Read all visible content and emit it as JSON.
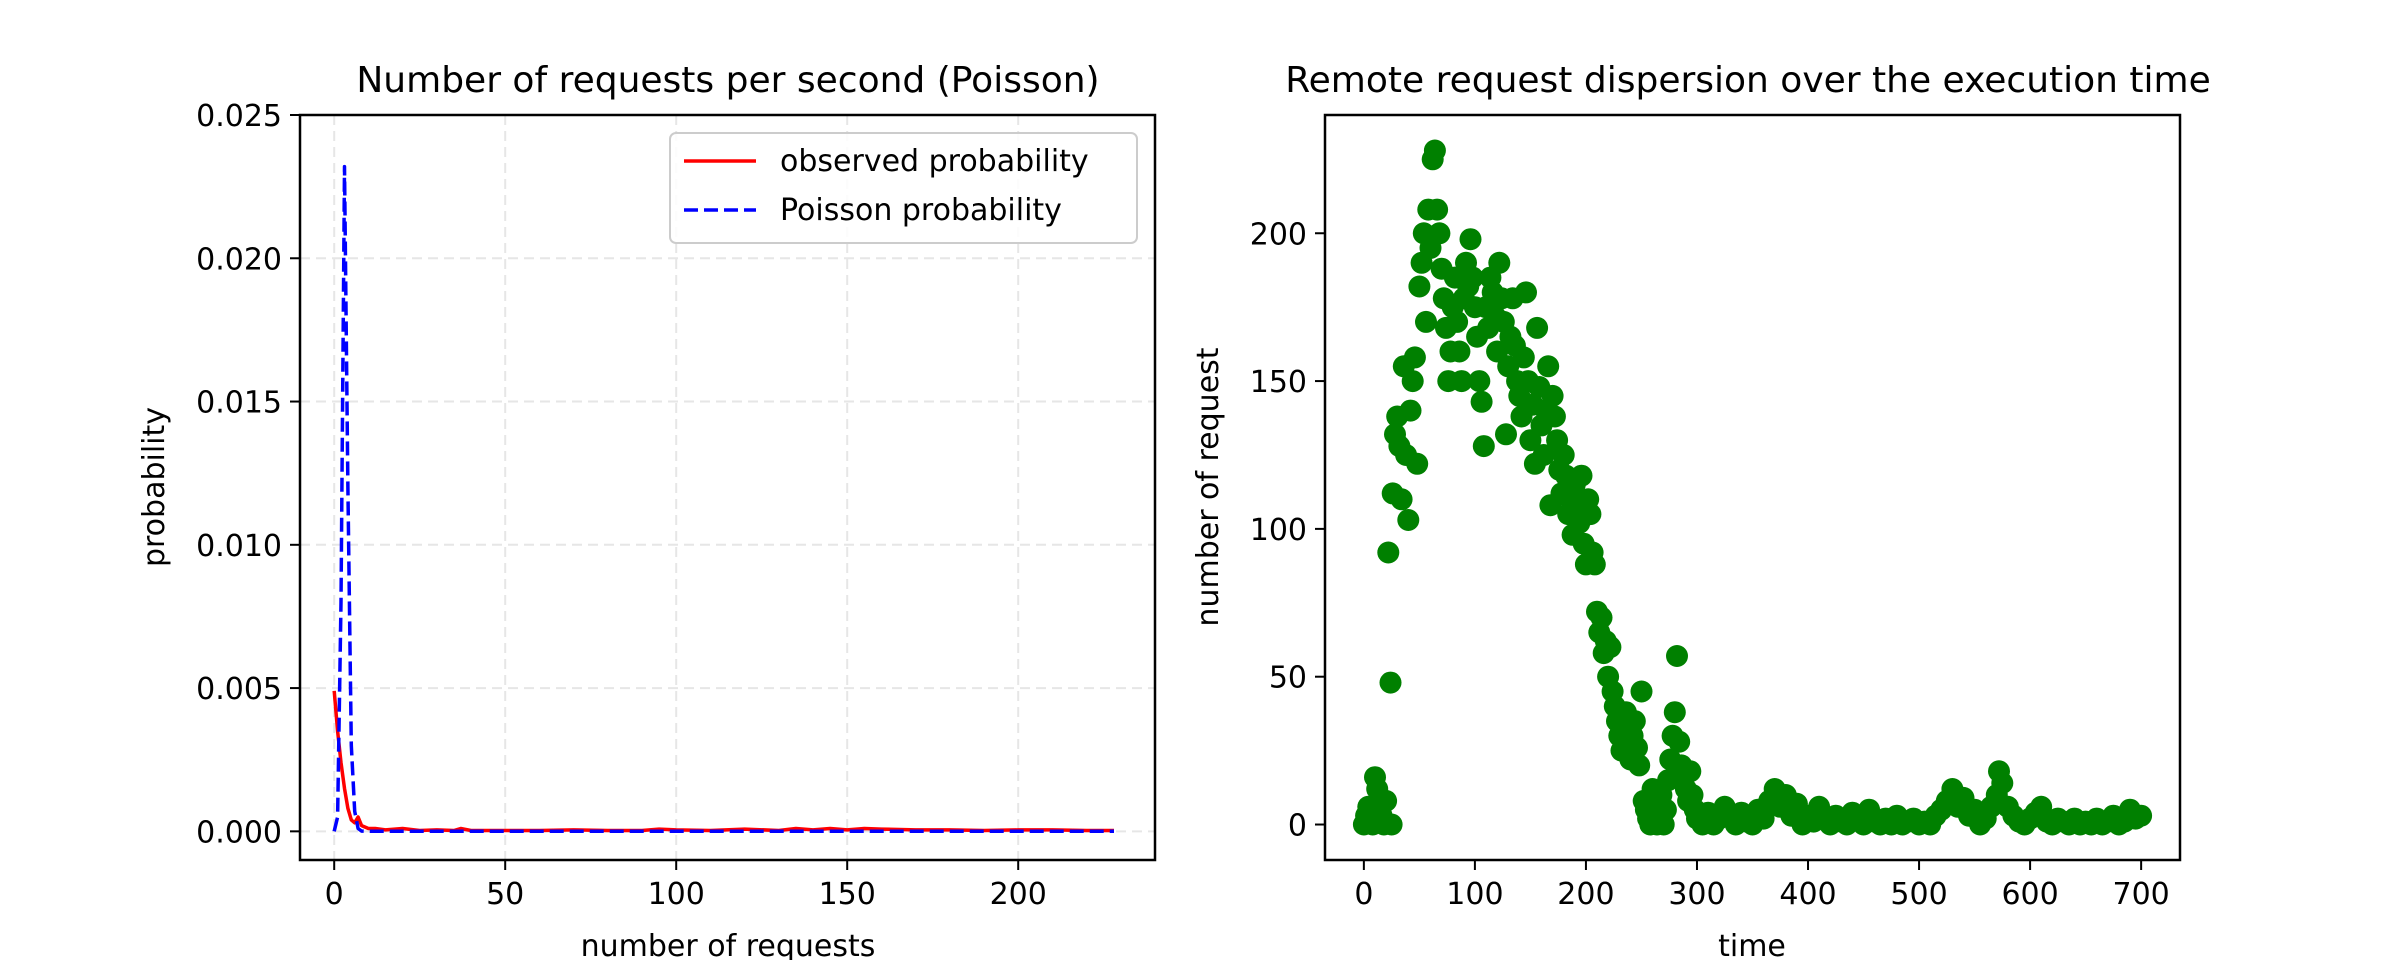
{
  "chart_data": [
    {
      "type": "line",
      "title": "Number of requests per second (Poisson)",
      "xlabel": "number of requests",
      "ylabel": "probability",
      "xlim": [
        -10,
        240
      ],
      "ylim": [
        -0.001,
        0.025
      ],
      "xticks": [
        0,
        50,
        100,
        150,
        200
      ],
      "xtick_labels": [
        "0",
        "50",
        "100",
        "150",
        "200"
      ],
      "yticks": [
        0.0,
        0.005,
        0.01,
        0.015,
        0.02,
        0.025
      ],
      "ytick_labels": [
        "0.000",
        "0.005",
        "0.010",
        "0.015",
        "0.020",
        "0.025"
      ],
      "grid": true,
      "legend_position": "top-right",
      "series": [
        {
          "name": "observed probability",
          "color": "#ff0000",
          "style": "solid",
          "x": [
            0,
            1,
            2,
            3,
            4,
            5,
            6,
            7,
            8,
            10,
            12,
            15,
            20,
            25,
            30,
            35,
            37,
            40,
            50,
            60,
            70,
            80,
            90,
            95,
            100,
            110,
            120,
            130,
            135,
            140,
            145,
            150,
            155,
            160,
            170,
            180,
            190,
            200,
            210,
            220,
            228
          ],
          "y": [
            0.0049,
            0.0035,
            0.0024,
            0.0015,
            0.0008,
            0.0004,
            0.0003,
            0.0005,
            0.0002,
            0.0001,
            0.0001,
            5e-05,
            0.0001,
            3e-05,
            5e-05,
            3e-05,
            0.0001,
            3e-05,
            3e-05,
            3e-05,
            5e-05,
            3e-05,
            3e-05,
            8e-05,
            5e-05,
            3e-05,
            8e-05,
            3e-05,
            0.0001,
            5e-05,
            0.0001,
            5e-05,
            0.0001,
            8e-05,
            5e-05,
            5e-05,
            3e-05,
            5e-05,
            5e-05,
            3e-05,
            3e-05
          ]
        },
        {
          "name": "Poisson probability",
          "color": "#0000ff",
          "style": "dashed",
          "x": [
            0,
            1,
            2,
            3,
            4,
            5,
            6,
            7,
            8,
            10,
            15,
            20,
            50,
            100,
            150,
            200,
            228
          ],
          "y": [
            0.0,
            0.0005,
            0.008,
            0.0232,
            0.012,
            0.003,
            0.0007,
            0.0001,
            1e-05,
            0.0,
            0.0,
            0.0,
            0.0,
            0.0,
            0.0,
            0.0,
            0.0
          ]
        }
      ]
    },
    {
      "type": "scatter",
      "title": "Remote request dispersion over the execution time",
      "xlabel": "time",
      "ylabel": "number of request",
      "xlim": [
        -35,
        735
      ],
      "ylim": [
        -12,
        240
      ],
      "xticks": [
        0,
        100,
        200,
        300,
        400,
        500,
        600,
        700
      ],
      "xtick_labels": [
        "0",
        "100",
        "200",
        "300",
        "400",
        "500",
        "600",
        "700"
      ],
      "yticks": [
        0,
        50,
        100,
        150,
        200
      ],
      "ytick_labels": [
        "0",
        "50",
        "100",
        "150",
        "200"
      ],
      "grid": false,
      "color": "#008000",
      "points": [
        [
          0,
          0
        ],
        [
          2,
          3
        ],
        [
          4,
          6
        ],
        [
          6,
          1
        ],
        [
          8,
          0
        ],
        [
          10,
          16
        ],
        [
          12,
          12
        ],
        [
          14,
          7
        ],
        [
          16,
          3
        ],
        [
          18,
          0
        ],
        [
          20,
          8
        ],
        [
          22,
          92
        ],
        [
          24,
          48
        ],
        [
          25,
          0
        ],
        [
          26,
          112
        ],
        [
          28,
          132
        ],
        [
          30,
          138
        ],
        [
          32,
          128
        ],
        [
          34,
          110
        ],
        [
          36,
          155
        ],
        [
          38,
          125
        ],
        [
          40,
          103
        ],
        [
          42,
          140
        ],
        [
          44,
          150
        ],
        [
          46,
          158
        ],
        [
          48,
          122
        ],
        [
          50,
          182
        ],
        [
          52,
          190
        ],
        [
          54,
          200
        ],
        [
          56,
          170
        ],
        [
          58,
          208
        ],
        [
          60,
          195
        ],
        [
          62,
          225
        ],
        [
          64,
          228
        ],
        [
          66,
          208
        ],
        [
          68,
          200
        ],
        [
          70,
          188
        ],
        [
          72,
          178
        ],
        [
          74,
          168
        ],
        [
          76,
          150
        ],
        [
          78,
          160
        ],
        [
          80,
          175
        ],
        [
          82,
          185
        ],
        [
          84,
          170
        ],
        [
          86,
          160
        ],
        [
          88,
          150
        ],
        [
          90,
          178
        ],
        [
          92,
          190
        ],
        [
          94,
          182
        ],
        [
          96,
          198
        ],
        [
          98,
          185
        ],
        [
          100,
          175
        ],
        [
          102,
          165
        ],
        [
          104,
          150
        ],
        [
          106,
          143
        ],
        [
          108,
          128
        ],
        [
          110,
          175
        ],
        [
          112,
          168
        ],
        [
          114,
          185
        ],
        [
          116,
          180
        ],
        [
          118,
          172
        ],
        [
          120,
          160
        ],
        [
          122,
          190
        ],
        [
          124,
          178
        ],
        [
          126,
          170
        ],
        [
          128,
          132
        ],
        [
          130,
          155
        ],
        [
          132,
          165
        ],
        [
          134,
          178
        ],
        [
          136,
          162
        ],
        [
          138,
          150
        ],
        [
          140,
          145
        ],
        [
          142,
          138
        ],
        [
          144,
          158
        ],
        [
          146,
          180
        ],
        [
          148,
          150
        ],
        [
          150,
          130
        ],
        [
          152,
          142
        ],
        [
          154,
          122
        ],
        [
          156,
          168
        ],
        [
          158,
          148
        ],
        [
          160,
          135
        ],
        [
          162,
          125
        ],
        [
          164,
          140
        ],
        [
          166,
          155
        ],
        [
          168,
          108
        ],
        [
          170,
          145
        ],
        [
          172,
          138
        ],
        [
          174,
          130
        ],
        [
          176,
          120
        ],
        [
          178,
          112
        ],
        [
          180,
          125
        ],
        [
          182,
          118
        ],
        [
          184,
          105
        ],
        [
          186,
          110
        ],
        [
          188,
          98
        ],
        [
          190,
          115
        ],
        [
          192,
          108
        ],
        [
          194,
          102
        ],
        [
          196,
          118
        ],
        [
          198,
          95
        ],
        [
          200,
          88
        ],
        [
          202,
          110
        ],
        [
          204,
          105
        ],
        [
          206,
          92
        ],
        [
          208,
          88
        ],
        [
          210,
          72
        ],
        [
          212,
          65
        ],
        [
          214,
          70
        ],
        [
          216,
          58
        ],
        [
          218,
          62
        ],
        [
          220,
          50
        ],
        [
          222,
          60
        ],
        [
          224,
          45
        ],
        [
          226,
          40
        ],
        [
          228,
          35
        ],
        [
          230,
          30
        ],
        [
          232,
          25
        ],
        [
          234,
          32
        ],
        [
          236,
          38
        ],
        [
          238,
          28
        ],
        [
          240,
          22
        ],
        [
          242,
          30
        ],
        [
          244,
          35
        ],
        [
          246,
          26
        ],
        [
          248,
          20
        ],
        [
          250,
          45
        ],
        [
          252,
          8
        ],
        [
          254,
          5
        ],
        [
          256,
          2
        ],
        [
          258,
          0
        ],
        [
          260,
          12
        ],
        [
          262,
          6
        ],
        [
          264,
          0
        ],
        [
          266,
          3
        ],
        [
          268,
          10
        ],
        [
          270,
          0
        ],
        [
          272,
          5
        ],
        [
          274,
          15
        ],
        [
          276,
          22
        ],
        [
          278,
          30
        ],
        [
          280,
          38
        ],
        [
          282,
          57
        ],
        [
          284,
          28
        ],
        [
          286,
          20
        ],
        [
          288,
          16
        ],
        [
          290,
          12
        ],
        [
          292,
          8
        ],
        [
          294,
          18
        ],
        [
          296,
          10
        ],
        [
          298,
          5
        ],
        [
          300,
          2
        ],
        [
          305,
          0
        ],
        [
          310,
          4
        ],
        [
          315,
          0
        ],
        [
          320,
          2
        ],
        [
          325,
          6
        ],
        [
          330,
          3
        ],
        [
          335,
          0
        ],
        [
          340,
          4
        ],
        [
          345,
          1
        ],
        [
          350,
          0
        ],
        [
          355,
          5
        ],
        [
          360,
          2
        ],
        [
          365,
          8
        ],
        [
          370,
          12
        ],
        [
          375,
          6
        ],
        [
          380,
          10
        ],
        [
          385,
          3
        ],
        [
          390,
          7
        ],
        [
          395,
          0
        ],
        [
          400,
          3
        ],
        [
          405,
          1
        ],
        [
          410,
          6
        ],
        [
          415,
          2
        ],
        [
          420,
          0
        ],
        [
          425,
          3
        ],
        [
          430,
          1
        ],
        [
          435,
          0
        ],
        [
          440,
          4
        ],
        [
          445,
          2
        ],
        [
          450,
          0
        ],
        [
          455,
          5
        ],
        [
          460,
          1
        ],
        [
          465,
          0
        ],
        [
          470,
          2
        ],
        [
          475,
          0
        ],
        [
          480,
          3
        ],
        [
          485,
          0
        ],
        [
          490,
          1
        ],
        [
          495,
          2
        ],
        [
          500,
          0
        ],
        [
          505,
          1
        ],
        [
          510,
          0
        ],
        [
          515,
          3
        ],
        [
          520,
          5
        ],
        [
          525,
          8
        ],
        [
          530,
          12
        ],
        [
          535,
          6
        ],
        [
          540,
          9
        ],
        [
          545,
          3
        ],
        [
          550,
          5
        ],
        [
          555,
          0
        ],
        [
          560,
          2
        ],
        [
          565,
          6
        ],
        [
          570,
          10
        ],
        [
          572,
          18
        ],
        [
          575,
          14
        ],
        [
          580,
          6
        ],
        [
          585,
          3
        ],
        [
          590,
          1
        ],
        [
          595,
          0
        ],
        [
          600,
          2
        ],
        [
          605,
          4
        ],
        [
          610,
          6
        ],
        [
          615,
          1
        ],
        [
          620,
          0
        ],
        [
          625,
          2
        ],
        [
          630,
          1
        ],
        [
          635,
          0
        ],
        [
          640,
          2
        ],
        [
          645,
          0
        ],
        [
          650,
          1
        ],
        [
          655,
          0
        ],
        [
          660,
          2
        ],
        [
          665,
          0
        ],
        [
          670,
          1
        ],
        [
          675,
          3
        ],
        [
          680,
          0
        ],
        [
          685,
          1
        ],
        [
          690,
          5
        ],
        [
          695,
          2
        ],
        [
          700,
          3
        ]
      ]
    }
  ]
}
